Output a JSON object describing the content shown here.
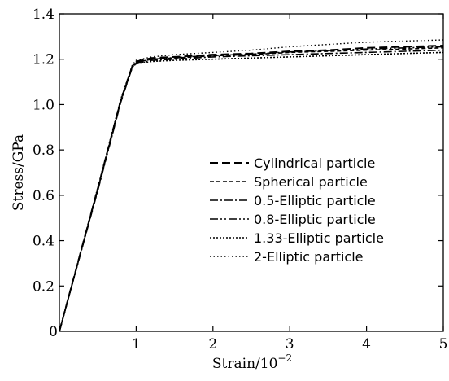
{
  "chart_data": {
    "type": "line",
    "xlabel": "Strain/10",
    "xlabel_exponent": "−2",
    "ylabel": "Stress/GPa",
    "xlim": [
      0,
      5
    ],
    "ylim": [
      0,
      1.4
    ],
    "x_ticks": [
      "0",
      "1",
      "2",
      "3",
      "4",
      "5"
    ],
    "y_ticks": [
      "0.2",
      "0.4",
      "0.6",
      "0.8",
      "1.0",
      "1.2",
      "1.4"
    ],
    "grid": false,
    "legend_position": "center-right",
    "series": [
      {
        "name": "Cylindrical particle",
        "dash": "long-dash",
        "x": [
          0,
          0.5,
          0.8,
          0.95,
          1.0,
          1.2,
          1.5,
          2.0,
          2.5,
          3.0,
          3.5,
          4.0,
          4.5,
          5.0
        ],
        "y": [
          0,
          0.63,
          1.02,
          1.17,
          1.19,
          1.205,
          1.21,
          1.22,
          1.225,
          1.235,
          1.24,
          1.25,
          1.255,
          1.26
        ]
      },
      {
        "name": "Spherical particle",
        "dash": "short-dash",
        "x": [
          0,
          0.5,
          0.8,
          0.95,
          1.0,
          1.2,
          1.5,
          2.0,
          2.5,
          3.0,
          3.5,
          4.0,
          4.5,
          5.0
        ],
        "y": [
          0,
          0.63,
          1.02,
          1.17,
          1.185,
          1.2,
          1.205,
          1.215,
          1.22,
          1.23,
          1.235,
          1.24,
          1.245,
          1.25
        ]
      },
      {
        "name": "0.5-Elliptic particle",
        "dash": "dash-dot",
        "x": [
          0,
          0.5,
          0.8,
          0.95,
          1.0,
          1.2,
          1.5,
          2.0,
          2.5,
          3.0,
          3.5,
          4.0,
          4.5,
          5.0
        ],
        "y": [
          0,
          0.62,
          1.01,
          1.165,
          1.18,
          1.195,
          1.2,
          1.21,
          1.215,
          1.22,
          1.225,
          1.23,
          1.235,
          1.24
        ]
      },
      {
        "name": "0.8-Elliptic particle",
        "dash": "dash-dot-dot",
        "x": [
          0,
          0.5,
          0.8,
          0.95,
          1.0,
          1.2,
          1.5,
          2.0,
          2.5,
          3.0,
          3.5,
          4.0,
          4.5,
          5.0
        ],
        "y": [
          0,
          0.625,
          1.015,
          1.168,
          1.185,
          1.2,
          1.207,
          1.217,
          1.222,
          1.232,
          1.238,
          1.245,
          1.25,
          1.255
        ]
      },
      {
        "name": "1.33-Elliptic particle",
        "dash": "dense-dot",
        "x": [
          0,
          0.5,
          0.8,
          0.95,
          1.0,
          1.2,
          1.5,
          2.0,
          2.5,
          3.0,
          3.5,
          4.0,
          4.5,
          5.0
        ],
        "y": [
          0,
          0.625,
          1.015,
          1.165,
          1.18,
          1.19,
          1.195,
          1.2,
          1.205,
          1.21,
          1.215,
          1.22,
          1.225,
          1.23
        ]
      },
      {
        "name": "2-Elliptic particle",
        "dash": "sparse-dot",
        "x": [
          0,
          0.5,
          0.8,
          0.95,
          1.0,
          1.2,
          1.5,
          2.0,
          2.5,
          3.0,
          3.5,
          4.0,
          4.5,
          5.0
        ],
        "y": [
          0,
          0.635,
          1.025,
          1.175,
          1.195,
          1.21,
          1.22,
          1.23,
          1.24,
          1.255,
          1.265,
          1.275,
          1.28,
          1.285
        ]
      }
    ]
  }
}
